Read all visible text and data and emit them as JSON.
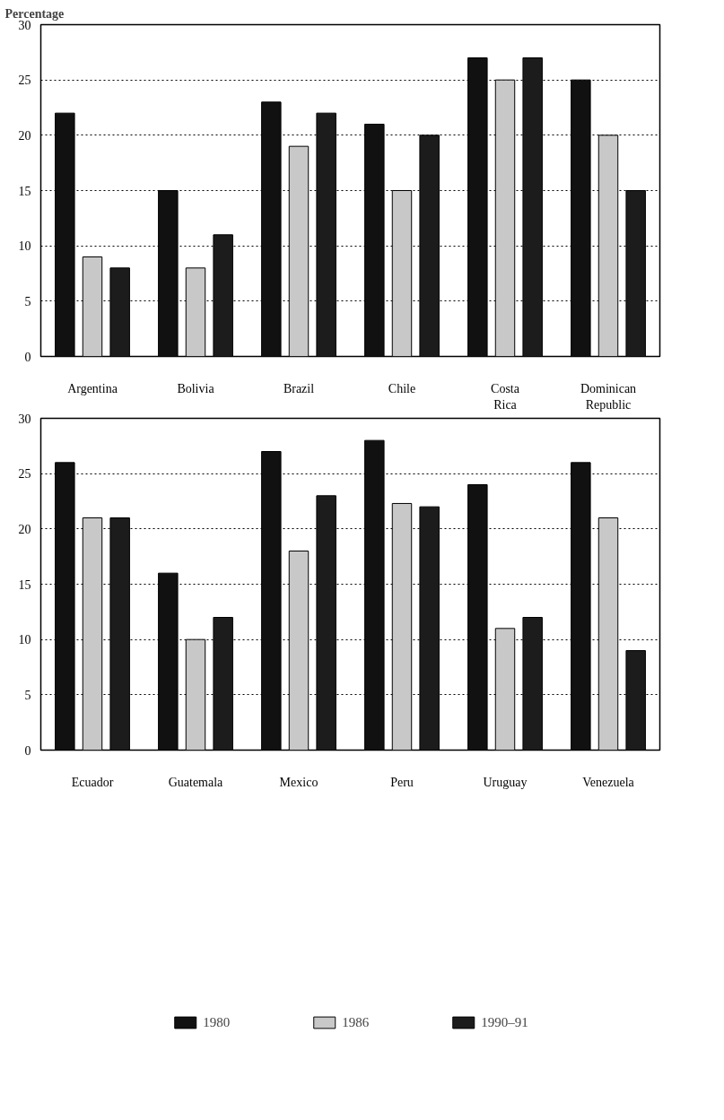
{
  "chart_data": [
    {
      "type": "bar",
      "ylabel": "Percentage",
      "categories": [
        "Argentina",
        "Bolivia",
        "Brazil",
        "Chile",
        "Costa Rica",
        "Dominican Republic"
      ],
      "ylim": [
        0,
        30
      ],
      "yticks": [
        0,
        5,
        10,
        15,
        20,
        25,
        30
      ],
      "grid": "y",
      "series": [
        {
          "color": "#111111",
          "values": [
            22,
            15,
            23,
            21,
            27,
            25
          ]
        },
        {
          "color": "#c8c8c8",
          "values": [
            9,
            8,
            19,
            15,
            25,
            20
          ]
        },
        {
          "color": "#1c1c1c",
          "values": [
            8,
            11,
            22,
            20,
            27,
            15
          ]
        }
      ]
    },
    {
      "type": "bar",
      "categories": [
        "Ecuador",
        "Guatemala",
        "Mexico",
        "Peru",
        "Uruguay",
        "Venezuela"
      ],
      "ylim": [
        0,
        30
      ],
      "yticks": [
        0,
        5,
        10,
        15,
        20,
        25,
        30
      ],
      "grid": "y",
      "legend": "bottom",
      "series": [
        {
          "name": "1980",
          "color": "#111111",
          "values": [
            26,
            16,
            27,
            28,
            24,
            26
          ]
        },
        {
          "name": "1986",
          "color": "#c8c8c8",
          "values": [
            21,
            10,
            18,
            22.3,
            11,
            21
          ]
        },
        {
          "name": "1990–91",
          "color": "#1c1c1c",
          "values": [
            21,
            12,
            23,
            22,
            12,
            9
          ]
        }
      ]
    }
  ]
}
